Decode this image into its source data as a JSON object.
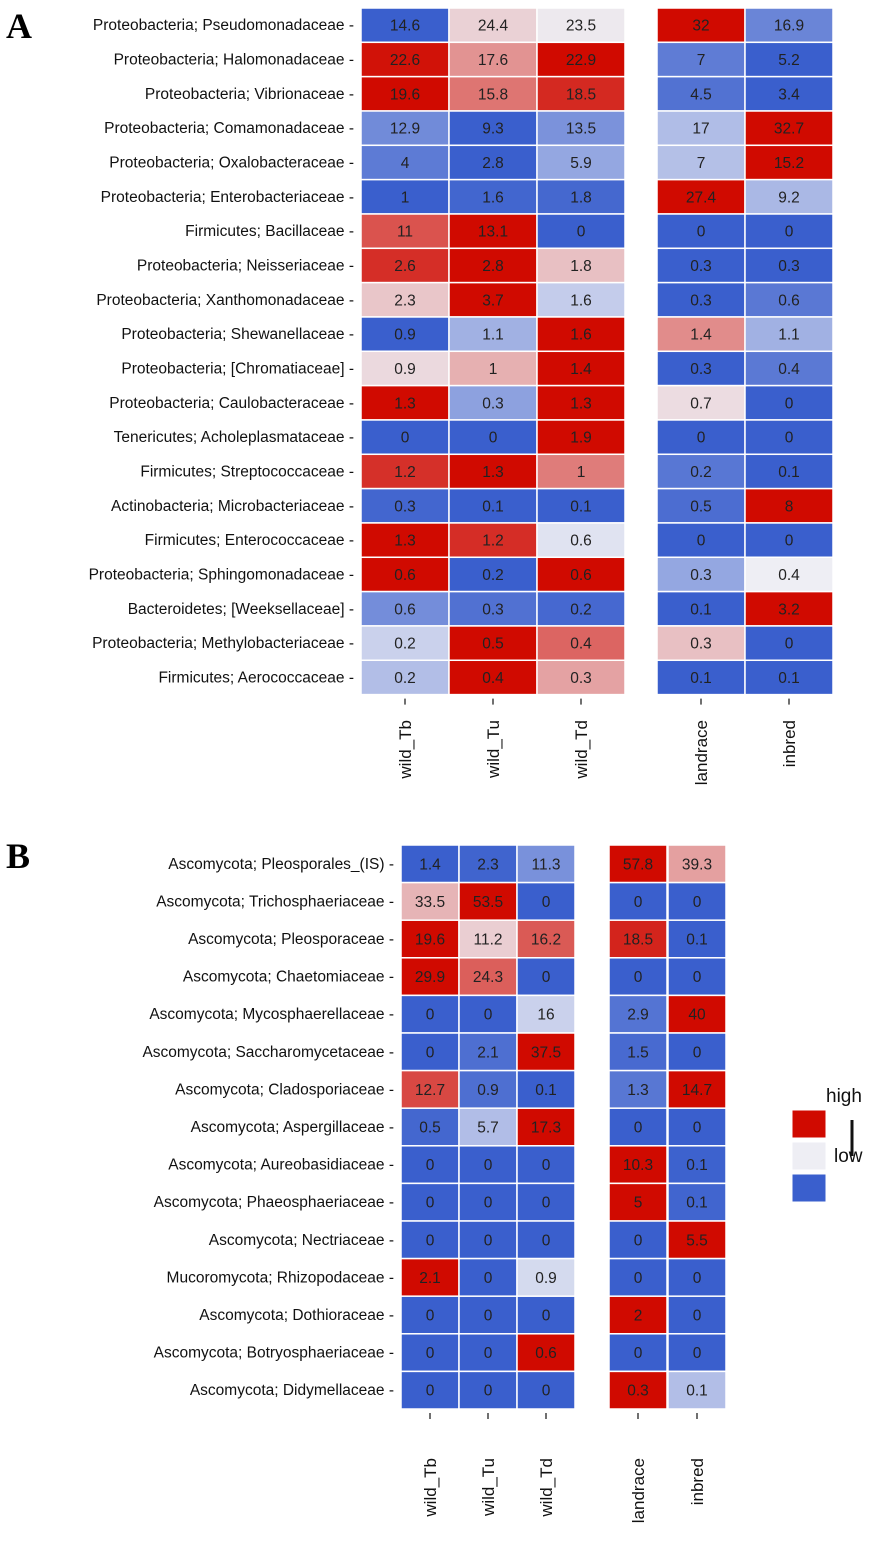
{
  "chart_data": [
    {
      "type": "heatmap",
      "panel": "A",
      "columns": [
        "wild_Tb",
        "wild_Tu",
        "wild_Td",
        "landrace",
        "inbred"
      ],
      "rows": [
        "Proteobacteria; Pseudomonadaceae",
        "Proteobacteria; Halomonadaceae",
        "Proteobacteria; Vibrionaceae",
        "Proteobacteria; Comamonadaceae",
        "Proteobacteria; Oxalobacteraceae",
        "Proteobacteria; Enterobacteriaceae",
        "Firmicutes; Bacillaceae",
        "Proteobacteria; Neisseriaceae",
        "Proteobacteria; Xanthomonadaceae",
        "Proteobacteria; Shewanellaceae",
        "Proteobacteria; [Chromatiaceae]",
        "Proteobacteria; Caulobacteraceae",
        "Tenericutes; Acholeplasmataceae",
        "Firmicutes; Streptococcaceae",
        "Actinobacteria; Microbacteriaceae",
        "Firmicutes; Enterococcaceae",
        "Proteobacteria; Sphingomonadaceae",
        "Bacteroidetes; [Weeksellaceae]",
        "Proteobacteria; Methylobacteriaceae",
        "Firmicutes; Aerococcaceae"
      ],
      "values": [
        [
          14.6,
          24.4,
          23.5,
          32,
          16.9
        ],
        [
          22.6,
          17.6,
          22.9,
          7,
          5.2
        ],
        [
          19.6,
          15.8,
          18.5,
          4.5,
          3.4
        ],
        [
          12.9,
          9.3,
          13.5,
          17,
          32.7
        ],
        [
          4,
          2.8,
          5.9,
          7,
          15.2
        ],
        [
          1,
          1.6,
          1.8,
          27.4,
          9.2
        ],
        [
          11,
          13.1,
          0,
          0,
          0
        ],
        [
          2.6,
          2.8,
          1.8,
          0.3,
          0.3
        ],
        [
          2.3,
          3.7,
          1.6,
          0.3,
          0.6
        ],
        [
          0.9,
          1.1,
          1.6,
          1.4,
          1.1
        ],
        [
          0.9,
          1,
          1.4,
          0.3,
          0.4
        ],
        [
          1.3,
          0.3,
          1.3,
          0.7,
          0
        ],
        [
          0,
          0,
          1.9,
          0,
          0
        ],
        [
          1.2,
          1.3,
          1,
          0.2,
          0.1
        ],
        [
          0.3,
          0.1,
          0.1,
          0.5,
          8
        ],
        [
          1.3,
          1.2,
          0.6,
          0,
          0
        ],
        [
          0.6,
          0.2,
          0.6,
          0.3,
          0.4
        ],
        [
          0.6,
          0.3,
          0.2,
          0.1,
          3.2
        ],
        [
          0.2,
          0.5,
          0.4,
          0.3,
          0
        ],
        [
          0.2,
          0.4,
          0.3,
          0.1,
          0.1
        ]
      ],
      "color_scale": {
        "low": "#3a5fcd",
        "mid": "#eeeef4",
        "high": "#d00a00"
      }
    },
    {
      "type": "heatmap",
      "panel": "B",
      "columns": [
        "wild_Tb",
        "wild_Tu",
        "wild_Td",
        "landrace",
        "inbred"
      ],
      "rows": [
        "Ascomycota; Pleosporales_(IS)",
        "Ascomycota; Trichosphaeriaceae",
        "Ascomycota; Pleosporaceae",
        "Ascomycota; Chaetomiaceae",
        "Ascomycota; Mycosphaerellaceae",
        "Ascomycota; Saccharomycetaceae",
        "Ascomycota; Cladosporiaceae",
        "Ascomycota; Aspergillaceae",
        "Ascomycota; Aureobasidiaceae",
        "Ascomycota; Phaeosphaeriaceae",
        "Ascomycota; Nectriaceae",
        "Mucoromycota; Rhizopodaceae",
        "Ascomycota; Dothioraceae",
        "Ascomycota; Botryosphaeriaceae",
        "Ascomycota; Didymellaceae"
      ],
      "values": [
        [
          1.4,
          2.3,
          11.3,
          57.8,
          39.3
        ],
        [
          33.5,
          53.5,
          0,
          0,
          0
        ],
        [
          19.6,
          11.2,
          16.2,
          18.5,
          0.1
        ],
        [
          29.9,
          24.3,
          0,
          0,
          0
        ],
        [
          0,
          0,
          16,
          2.9,
          40
        ],
        [
          0,
          2.1,
          37.5,
          1.5,
          0
        ],
        [
          12.7,
          0.9,
          0.1,
          1.3,
          14.7
        ],
        [
          0.5,
          5.7,
          17.3,
          0,
          0
        ],
        [
          0,
          0,
          0,
          10.3,
          0.1
        ],
        [
          0,
          0,
          0,
          5,
          0.1
        ],
        [
          0,
          0,
          0,
          0,
          5.5
        ],
        [
          2.1,
          0,
          0.9,
          0,
          0
        ],
        [
          0,
          0,
          0,
          2,
          0
        ],
        [
          0,
          0,
          0.6,
          0,
          0
        ],
        [
          0,
          0,
          0,
          0.3,
          0.1
        ]
      ],
      "color_scale": {
        "low": "#3a5fcd",
        "mid": "#eeeef4",
        "high": "#d00a00"
      }
    }
  ],
  "legend": {
    "high_label": "high",
    "low_label": "low",
    "high_color": "#d00a00",
    "mid_color": "#eeeef4",
    "low_color": "#3a5fcd"
  }
}
